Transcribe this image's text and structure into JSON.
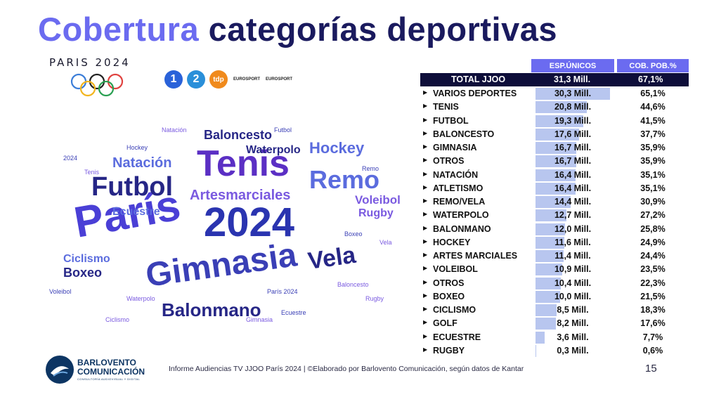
{
  "title": {
    "part1": "Cobertura",
    "part2": "categorías deportivas"
  },
  "event_logo": "PARIS 2024",
  "channels": {
    "ch1": "1",
    "ch2": "2",
    "tdp": "tdp",
    "eurosport1": "EUROSPORT",
    "eurosport2": "EUROSPORT"
  },
  "wordcloud": [
    {
      "text": "París",
      "size": 62,
      "color": "#4a3fd6",
      "rot": -10
    },
    {
      "text": "2024",
      "size": 58,
      "color": "#2a34b0",
      "rot": 0
    },
    {
      "text": "Tenis",
      "size": 52,
      "color": "#5b2fc4",
      "rot": 0
    },
    {
      "text": "Gimnasia",
      "size": 48,
      "color": "#3a3fb6",
      "rot": -8
    },
    {
      "text": "Futbol",
      "size": 38,
      "color": "#262686",
      "rot": 0
    },
    {
      "text": "Remo",
      "size": 36,
      "color": "#5b6cde",
      "rot": 0
    },
    {
      "text": "Vela",
      "size": 34,
      "color": "#262686",
      "rot": -8
    },
    {
      "text": "Balonmano",
      "size": 26,
      "color": "#262686",
      "rot": 0
    },
    {
      "text": "Artesmarciales",
      "size": 20,
      "color": "#7a5ae0",
      "rot": 0
    },
    {
      "text": "Natación",
      "size": 20,
      "color": "#5b6cde",
      "rot": 0
    },
    {
      "text": "Hockey",
      "size": 22,
      "color": "#5b6cde",
      "rot": 0
    },
    {
      "text": "Baloncesto",
      "size": 18,
      "color": "#262686",
      "rot": 0
    },
    {
      "text": "Voleibol",
      "size": 17,
      "color": "#7a5ae0",
      "rot": 0
    },
    {
      "text": "Rugby",
      "size": 16,
      "color": "#7a5ae0",
      "rot": 0
    },
    {
      "text": "Ciclismo",
      "size": 16,
      "color": "#5b6cde",
      "rot": 0
    },
    {
      "text": "Boxeo",
      "size": 18,
      "color": "#262686",
      "rot": 0
    },
    {
      "text": "Ecuestre",
      "size": 16,
      "color": "#5b6cde",
      "rot": 0
    },
    {
      "text": "Waterpolo",
      "size": 16,
      "color": "#262686",
      "rot": 0
    }
  ],
  "table": {
    "header_esp": "ESP.ÚNICOS",
    "header_cob": "COB. POB.%",
    "total": {
      "label": "TOTAL JJOO",
      "esp": "31,3 Mill.",
      "cob": "67,1%"
    },
    "rows": [
      {
        "label": "VARIOS DEPORTES",
        "esp": "30,3 Mill.",
        "cob": "65,1%",
        "value": 30.3
      },
      {
        "label": "TENIS",
        "esp": "20,8 Mill.",
        "cob": "44,6%",
        "value": 20.8
      },
      {
        "label": "FUTBOL",
        "esp": "19,3 Mill.",
        "cob": "41,5%",
        "value": 19.3
      },
      {
        "label": "BALONCESTO",
        "esp": "17,6 Mill.",
        "cob": "37,7%",
        "value": 17.6
      },
      {
        "label": "GIMNASIA",
        "esp": "16,7 Mill.",
        "cob": "35,9%",
        "value": 16.7
      },
      {
        "label": "OTROS",
        "esp": "16,7 Mill.",
        "cob": "35,9%",
        "value": 16.7
      },
      {
        "label": "NATACIÓN",
        "esp": "16,4 Mill.",
        "cob": "35,1%",
        "value": 16.4
      },
      {
        "label": "ATLETISMO",
        "esp": "16,4 Mill.",
        "cob": "35,1%",
        "value": 16.4
      },
      {
        "label": "REMO/VELA",
        "esp": "14,4 Mill.",
        "cob": "30,9%",
        "value": 14.4
      },
      {
        "label": "WATERPOLO",
        "esp": "12,7 Mill.",
        "cob": "27,2%",
        "value": 12.7
      },
      {
        "label": "BALONMANO",
        "esp": "12,0 Mill.",
        "cob": "25,8%",
        "value": 12.0
      },
      {
        "label": "HOCKEY",
        "esp": "11,6 Mill.",
        "cob": "24,9%",
        "value": 11.6
      },
      {
        "label": "ARTES MARCIALES",
        "esp": "11,4 Mill.",
        "cob": "24,4%",
        "value": 11.4
      },
      {
        "label": "VOLEIBOL",
        "esp": "10,9 Mill.",
        "cob": "23,5%",
        "value": 10.9
      },
      {
        "label": "OTROS",
        "esp": "10,4 Mill.",
        "cob": "22,3%",
        "value": 10.4
      },
      {
        "label": "BOXEO",
        "esp": "10,0 Mill.",
        "cob": "21,5%",
        "value": 10.0
      },
      {
        "label": "CICLISMO",
        "esp": "8,5 Mill.",
        "cob": "18,3%",
        "value": 8.5
      },
      {
        "label": "GOLF",
        "esp": "8,2 Mill.",
        "cob": "17,6%",
        "value": 8.2
      },
      {
        "label": "ECUESTRE",
        "esp": "3,6 Mill.",
        "cob": "7,7%",
        "value": 3.6
      },
      {
        "label": "RUGBY",
        "esp": "0,3 Mill.",
        "cob": "0,6%",
        "value": 0.3
      }
    ]
  },
  "footer": {
    "brand_line1": "BARLOVENTO",
    "brand_line2": "COMUNICACIÓN",
    "brand_sub": "CONSULTORÍA AUDIOVISUAL Y DIGITAL",
    "source": "Informe Audiencias TV JJOO París 2024 | ©Elaborado por Barlovento Comunicación, según datos de Kantar",
    "page": "15"
  }
}
